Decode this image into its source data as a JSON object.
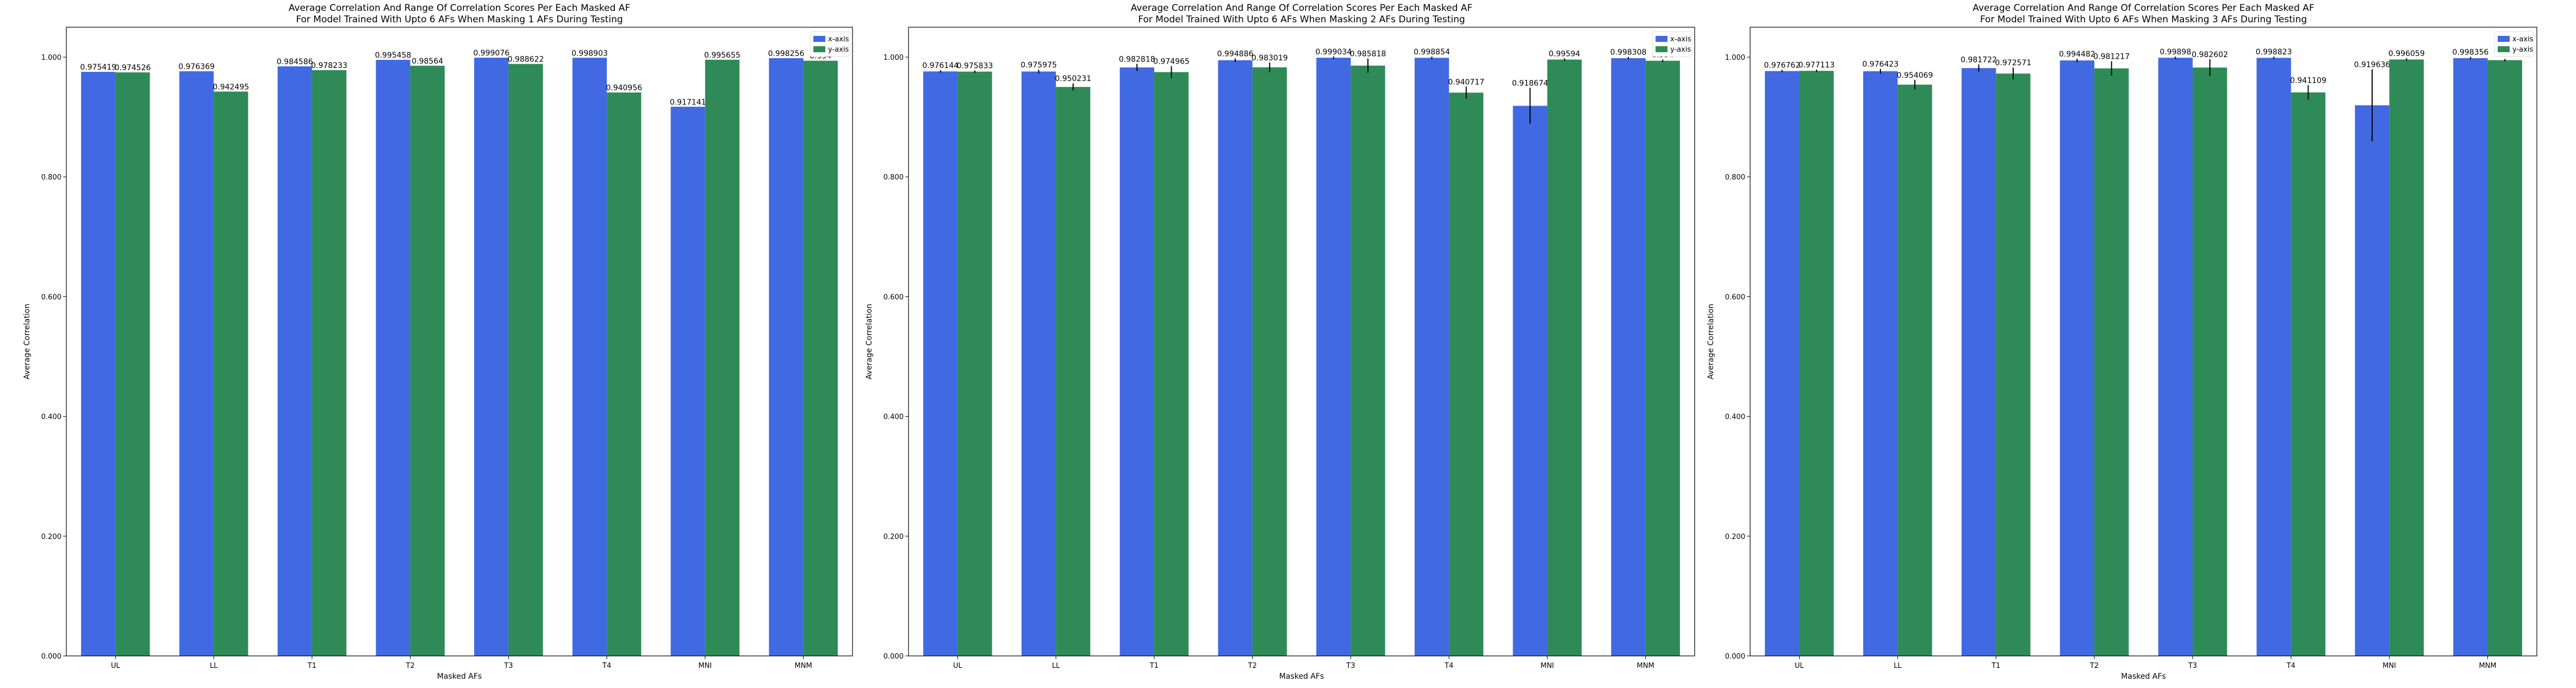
{
  "chart_data": [
    {
      "type": "bar",
      "title": "Average Correlation And Range Of Correlation Scores Per Each Masked AF",
      "subtitle": "For Model Trained With Upto 6 AFs When Masking 1 AFs During Testing",
      "xlabel": "Masked AFs",
      "ylabel": "Average Correlation",
      "ylim": [
        0,
        1.05
      ],
      "yticks": [
        "0.000",
        "0.200",
        "0.400",
        "0.600",
        "0.800",
        "1.000"
      ],
      "categories": [
        "UL",
        "LL",
        "T1",
        "T2",
        "T3",
        "T4",
        "MNI",
        "MNM"
      ],
      "series": [
        {
          "name": "x-axis",
          "color": "#4169e1",
          "values": [
            0.975419,
            0.976369,
            0.984586,
            0.995458,
            0.999076,
            0.998903,
            0.917141,
            0.998256
          ],
          "labels": [
            "0.975419",
            "0.976369",
            "0.984586",
            "0.995458",
            "0.999076",
            "0.998903",
            "0.917141",
            "0.998256"
          ],
          "err": [
            0,
            0,
            0,
            0,
            0,
            0,
            0,
            0
          ]
        },
        {
          "name": "y-axis",
          "color": "#2e8b57",
          "values": [
            0.974526,
            0.942495,
            0.978233,
            0.98564,
            0.988622,
            0.940956,
            0.995655,
            0.994
          ],
          "labels": [
            "0.974526",
            "0.942495",
            "0.978233",
            "0.98564",
            "0.988622",
            "0.940956",
            "0.995655",
            "0.994"
          ],
          "err": [
            0,
            0,
            0,
            0,
            0,
            0,
            0,
            0
          ]
        }
      ],
      "legend": "top-right"
    },
    {
      "type": "bar",
      "title": "Average Correlation And Range Of Correlation Scores Per Each Masked AF",
      "subtitle": "For Model Trained With Upto 6 AFs When Masking 2 AFs During Testing",
      "xlabel": "Masked AFs",
      "ylabel": "Average Correlation",
      "ylim": [
        0,
        1.05
      ],
      "yticks": [
        "0.000",
        "0.200",
        "0.400",
        "0.600",
        "0.800",
        "1.000"
      ],
      "categories": [
        "UL",
        "LL",
        "T1",
        "T2",
        "T3",
        "T4",
        "MNI",
        "MNM"
      ],
      "series": [
        {
          "name": "x-axis",
          "color": "#4169e1",
          "values": [
            0.976144,
            0.975975,
            0.982818,
            0.994886,
            0.999034,
            0.998854,
            0.918674,
            0.998308
          ],
          "labels": [
            "0.976144",
            "0.975975",
            "0.982818",
            "0.994886",
            "0.999034",
            "0.998854",
            "0.918674",
            "0.998308"
          ],
          "err": [
            0.002,
            0.003,
            0.006,
            0.003,
            0.002,
            0.002,
            0.03,
            0.002
          ]
        },
        {
          "name": "y-axis",
          "color": "#2e8b57",
          "values": [
            0.975833,
            0.950231,
            0.974965,
            0.983019,
            0.985818,
            0.940717,
            0.99594,
            0.994
          ],
          "labels": [
            "0.975833",
            "0.950231",
            "0.974965",
            "0.983019",
            "0.985818",
            "0.940717",
            "0.99594",
            "0.994"
          ],
          "err": [
            0.002,
            0.006,
            0.01,
            0.008,
            0.012,
            0.01,
            0.002,
            0.002
          ]
        }
      ],
      "legend": "top-right"
    },
    {
      "type": "bar",
      "title": "Average Correlation And Range Of Correlation Scores Per Each Masked AF",
      "subtitle": "For Model Trained With Upto 6 AFs When Masking 3 AFs During Testing",
      "xlabel": "Masked AFs",
      "ylabel": "Average Correlation",
      "ylim": [
        0,
        1.05
      ],
      "yticks": [
        "0.000",
        "0.200",
        "0.400",
        "0.600",
        "0.800",
        "1.000"
      ],
      "categories": [
        "UL",
        "LL",
        "T1",
        "T2",
        "T3",
        "T4",
        "MNI",
        "MNM"
      ],
      "series": [
        {
          "name": "x-axis",
          "color": "#4169e1",
          "values": [
            0.97676,
            0.976423,
            0.981722,
            0.994482,
            0.99898,
            0.998823,
            0.919636,
            0.998356
          ],
          "labels": [
            "0.976762",
            "0.976423",
            "0.981722",
            "0.994482",
            "0.99898",
            "0.998823",
            "0.919636",
            "0.998356"
          ],
          "err": [
            0.002,
            0.004,
            0.006,
            0.003,
            0.002,
            0.002,
            0.06,
            0.002
          ]
        },
        {
          "name": "y-axis",
          "color": "#2e8b57",
          "values": [
            0.977113,
            0.954069,
            0.972571,
            0.981217,
            0.982602,
            0.941109,
            0.996059,
            0.995
          ],
          "labels": [
            "0.977113",
            "0.954069",
            "0.972571",
            "0.981217",
            "0.982602",
            "0.941109",
            "0.996059",
            "0.995"
          ],
          "err": [
            0.002,
            0.008,
            0.01,
            0.012,
            0.014,
            0.012,
            0.002,
            0.002
          ]
        }
      ],
      "legend": "top-right"
    }
  ]
}
